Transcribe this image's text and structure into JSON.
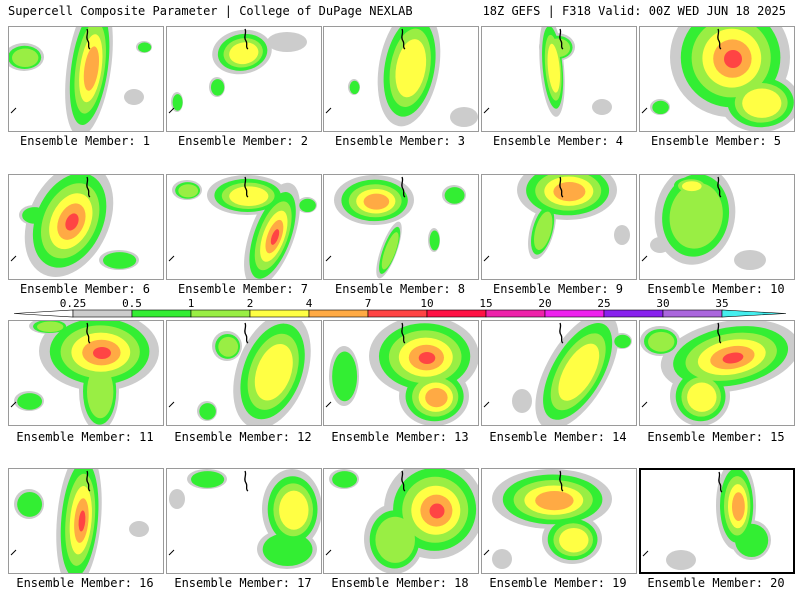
{
  "header": {
    "left": "Supercell Composite Parameter | College of DuPage NEXLAB",
    "right": "18Z GEFS | F318 Valid: 00Z WED JUN 18 2025"
  },
  "members": [
    {
      "label": "Ensemble Member: 1"
    },
    {
      "label": "Ensemble Member: 2"
    },
    {
      "label": "Ensemble Member: 3"
    },
    {
      "label": "Ensemble Member: 4"
    },
    {
      "label": "Ensemble Member: 5"
    },
    {
      "label": "Ensemble Member: 6"
    },
    {
      "label": "Ensemble Member: 7"
    },
    {
      "label": "Ensemble Member: 8"
    },
    {
      "label": "Ensemble Member: 9"
    },
    {
      "label": "Ensemble Member: 10"
    },
    {
      "label": "Ensemble Member: 11"
    },
    {
      "label": "Ensemble Member: 12"
    },
    {
      "label": "Ensemble Member: 13"
    },
    {
      "label": "Ensemble Member: 14"
    },
    {
      "label": "Ensemble Member: 15"
    },
    {
      "label": "Ensemble Member: 16"
    },
    {
      "label": "Ensemble Member: 17"
    },
    {
      "label": "Ensemble Member: 18"
    },
    {
      "label": "Ensemble Member: 19"
    },
    {
      "label": "Ensemble Member: 20"
    }
  ],
  "legend": {
    "ticks": [
      "0.25",
      "0.5",
      "1",
      "2",
      "4",
      "7",
      "10",
      "15",
      "20",
      "25",
      "30",
      "35"
    ],
    "colors": [
      "#cccccc",
      "#33ee33",
      "#99ee44",
      "#ffff44",
      "#ffaa44",
      "#ff4444",
      "#ff1144",
      "#ee22aa",
      "#ee22ee",
      "#8822ee",
      "#aa66dd",
      "#44eeee"
    ]
  },
  "colors": {
    "c0": "#cccccc",
    "c1": "#33ee33",
    "c2": "#99ee44",
    "c3": "#ffff44",
    "c4": "#ffaa44",
    "c5": "#ff4444",
    "c6": "#dd1144"
  }
}
